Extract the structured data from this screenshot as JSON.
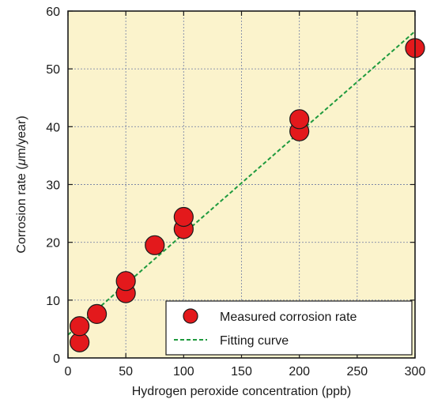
{
  "chart_data": {
    "type": "scatter",
    "title": "",
    "xlabel": "Hydrogen peroxide concentration (ppb)",
    "ylabel_parts": [
      "Corrosion rate (",
      "μ",
      "m/year)"
    ],
    "xlim": [
      0,
      300
    ],
    "ylim": [
      0,
      60
    ],
    "xticks": [
      0,
      50,
      100,
      150,
      200,
      250,
      300
    ],
    "yticks": [
      0,
      10,
      20,
      30,
      40,
      50,
      60
    ],
    "grid": true,
    "legend_position": "bottom-right",
    "colors": {
      "plot_background": "#fbf3cc",
      "marker_fill": "#e3191c",
      "marker_edge": "#1a1a1a",
      "fit_line": "#1f9a3e",
      "grid": "#7f8aa8",
      "frame": "#1a1a1a"
    },
    "series": [
      {
        "name": "Measured corrosion rate",
        "kind": "scatter",
        "points": [
          {
            "x": 10,
            "y": 2.7
          },
          {
            "x": 10,
            "y": 5.5
          },
          {
            "x": 25,
            "y": 7.6
          },
          {
            "x": 50,
            "y": 11.2
          },
          {
            "x": 50,
            "y": 13.3
          },
          {
            "x": 75,
            "y": 19.5
          },
          {
            "x": 100,
            "y": 22.3
          },
          {
            "x": 100,
            "y": 24.4
          },
          {
            "x": 200,
            "y": 39.2
          },
          {
            "x": 200,
            "y": 41.3
          },
          {
            "x": 300,
            "y": 53.6
          }
        ]
      },
      {
        "name": "Fitting curve",
        "kind": "line",
        "style": "dashed",
        "points": [
          {
            "x": 0,
            "y": 4.0
          },
          {
            "x": 300,
            "y": 56.5
          }
        ]
      }
    ]
  }
}
